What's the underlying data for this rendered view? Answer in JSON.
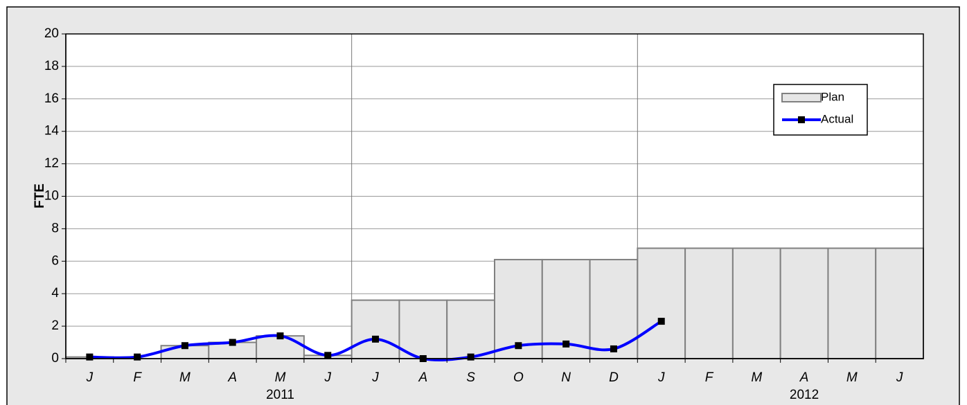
{
  "chart_data": {
    "type": "bar-line",
    "ylabel": "FTE",
    "categories": [
      "J",
      "F",
      "M",
      "A",
      "M",
      "J",
      "J",
      "A",
      "S",
      "O",
      "N",
      "D",
      "J",
      "F",
      "M",
      "A",
      "M",
      "J"
    ],
    "year_labels": [
      "2011",
      "2012"
    ],
    "series": [
      {
        "name": "Plan",
        "type": "bar",
        "color": "#e6e6e6",
        "values": [
          0.1,
          0,
          0.8,
          1.0,
          1.4,
          0.2,
          3.6,
          3.6,
          3.6,
          6.1,
          6.1,
          6.1,
          6.8,
          6.8,
          6.8,
          6.8,
          6.8,
          6.8
        ]
      },
      {
        "name": "Actual",
        "type": "line",
        "color": "#0000ff",
        "values": [
          0.1,
          0.1,
          0.8,
          1.0,
          1.4,
          0.2,
          1.2,
          0.0,
          0.1,
          0.8,
          0.9,
          0.6,
          2.3,
          null,
          null,
          null,
          null,
          null
        ]
      }
    ],
    "ylim": [
      0,
      20
    ],
    "yticks": [
      0,
      2,
      4,
      6,
      8,
      10,
      12,
      14,
      16,
      18,
      20
    ],
    "grid": true,
    "legend": "upper right"
  }
}
